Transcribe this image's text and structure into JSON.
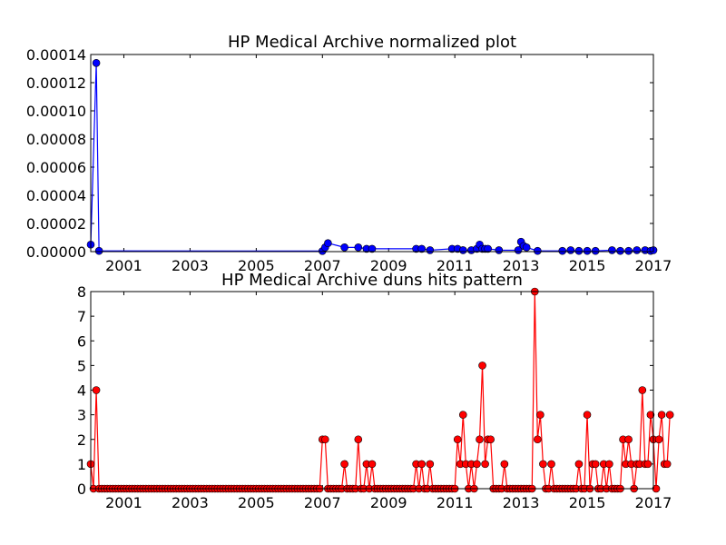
{
  "chart_data": [
    {
      "type": "line",
      "title": "HP Medical Archive normalized plot",
      "xlabel": "",
      "ylabel": "",
      "xlim": [
        2000.0,
        2017.0
      ],
      "ylim": [
        0,
        0.00014
      ],
      "x_ticks": [
        "2001",
        "2003",
        "2005",
        "2007",
        "2009",
        "2011",
        "2013",
        "2015",
        "2017"
      ],
      "y_ticks": [
        "0.00000",
        "0.00002",
        "0.00004",
        "0.00006",
        "0.00008",
        "0.00010",
        "0.00012",
        "0.00014"
      ],
      "colors": {
        "line": "#0000ff",
        "marker": "#0000ff"
      },
      "series": [
        {
          "x": [
            2000.0,
            2000.167,
            2000.25,
            2007.0,
            2007.083,
            2007.167,
            2007.667,
            2008.083,
            2008.333,
            2008.5,
            2009.833,
            2010.0,
            2010.25,
            2010.917,
            2011.083,
            2011.25,
            2011.5,
            2011.667,
            2011.75,
            2011.833,
            2011.917,
            2012.0,
            2012.333,
            2012.917,
            2013.0,
            2013.083,
            2013.167,
            2013.5,
            2014.25,
            2014.5,
            2014.75,
            2015.0,
            2015.25,
            2015.75,
            2016.0,
            2016.25,
            2016.5,
            2016.75,
            2016.917,
            2017.0
          ],
          "values": [
            5e-06,
            0.000134,
            5e-07,
            4e-07,
            3e-06,
            6e-06,
            3e-06,
            3e-06,
            2e-06,
            2e-06,
            2e-06,
            2e-06,
            1e-06,
            2e-06,
            2e-06,
            1e-06,
            1e-06,
            2e-06,
            5e-06,
            2e-06,
            2e-06,
            2e-06,
            1e-06,
            1e-06,
            7e-06,
            4e-06,
            3e-06,
            5e-07,
            5e-07,
            1e-06,
            5e-07,
            5e-07,
            5e-07,
            1e-06,
            5e-07,
            5e-07,
            1e-06,
            1e-06,
            5e-07,
            1e-06
          ]
        }
      ]
    },
    {
      "type": "line",
      "title": "HP Medical Archive duns hits pattern",
      "xlabel": "",
      "ylabel": "",
      "xlim": [
        2000.0,
        2017.0
      ],
      "ylim": [
        0,
        8
      ],
      "x_ticks": [
        "2001",
        "2003",
        "2005",
        "2007",
        "2009",
        "2011",
        "2013",
        "2015",
        "2017"
      ],
      "y_ticks": [
        "0",
        "1",
        "2",
        "3",
        "4",
        "5",
        "6",
        "7",
        "8"
      ],
      "colors": {
        "line": "#ff0000",
        "marker": "#ff0000"
      },
      "series": [
        {
          "x_start": 2000.0,
          "x_step": 0.08333,
          "values": [
            1,
            0,
            4,
            0,
            0,
            0,
            0,
            0,
            0,
            0,
            0,
            0,
            0,
            0,
            0,
            0,
            0,
            0,
            0,
            0,
            0,
            0,
            0,
            0,
            0,
            0,
            0,
            0,
            0,
            0,
            0,
            0,
            0,
            0,
            0,
            0,
            0,
            0,
            0,
            0,
            0,
            0,
            0,
            0,
            0,
            0,
            0,
            0,
            0,
            0,
            0,
            0,
            0,
            0,
            0,
            0,
            0,
            0,
            0,
            0,
            0,
            0,
            0,
            0,
            0,
            0,
            0,
            0,
            0,
            0,
            0,
            0,
            0,
            0,
            0,
            0,
            0,
            0,
            0,
            0,
            0,
            0,
            0,
            0,
            2,
            2,
            0,
            0,
            0,
            0,
            0,
            0,
            1,
            0,
            0,
            0,
            0,
            2,
            0,
            0,
            1,
            0,
            1,
            0,
            0,
            0,
            0,
            0,
            0,
            0,
            0,
            0,
            0,
            0,
            0,
            0,
            0,
            0,
            1,
            0,
            1,
            0,
            0,
            1,
            0,
            0,
            0,
            0,
            0,
            0,
            0,
            0,
            0,
            2,
            1,
            3,
            1,
            0,
            1,
            0,
            1,
            2,
            5,
            1,
            2,
            2,
            0,
            0,
            0,
            0,
            1,
            0,
            0,
            0,
            0,
            0,
            0,
            0,
            0,
            0,
            0,
            8,
            2,
            3,
            1,
            0,
            0,
            1,
            0,
            0,
            0,
            0,
            0,
            0,
            0,
            0,
            0,
            1,
            0,
            0,
            3,
            0,
            1,
            1,
            0,
            0,
            1,
            0,
            1,
            0,
            0,
            0,
            0,
            2,
            1,
            2,
            1,
            0,
            1,
            1,
            4,
            1,
            1,
            3,
            2,
            0,
            2,
            3,
            1,
            1,
            3
          ]
        }
      ]
    }
  ]
}
